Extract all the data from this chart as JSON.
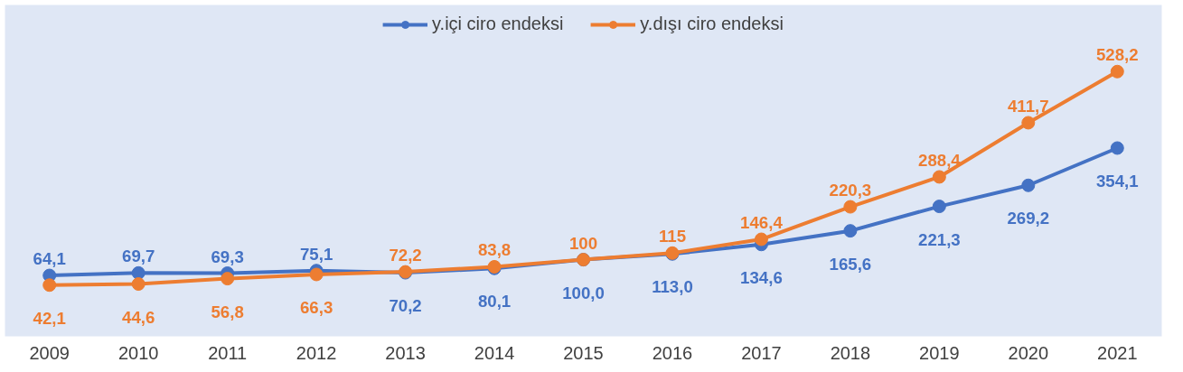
{
  "chart_data": {
    "type": "line",
    "categories": [
      "2009",
      "2010",
      "2011",
      "2012",
      "2013",
      "2014",
      "2015",
      "2016",
      "2017",
      "2018",
      "2019",
      "2020",
      "2021"
    ],
    "series": [
      {
        "name": "y.içi ciro endeksi",
        "color": "#4472c4",
        "values": [
          64.1,
          69.7,
          69.3,
          75.1,
          70.2,
          80.1,
          100.0,
          113.0,
          134.6,
          165.6,
          221.3,
          269.2,
          354.1
        ],
        "value_labels": [
          "64,1",
          "69,7",
          "69,3",
          "75,1",
          "70,2",
          "80,1",
          "100,0",
          "113,0",
          "134,6",
          "165,6",
          "221,3",
          "269,2",
          "354,1"
        ]
      },
      {
        "name": "y.dışı ciro endeksi",
        "color": "#ed7d31",
        "values": [
          42.1,
          44.6,
          56.8,
          66.3,
          72.2,
          83.8,
          100,
          115,
          146.4,
          220.3,
          288.4,
          411.7,
          528.2
        ],
        "value_labels": [
          "42,1",
          "44,6",
          "56,8",
          "66,3",
          "72,2",
          "83,8",
          "100",
          "115",
          "146,4",
          "220,3",
          "288,4",
          "411,7",
          "528,2"
        ]
      }
    ],
    "marker": "circle",
    "line_style": "solid",
    "legend": "top"
  }
}
